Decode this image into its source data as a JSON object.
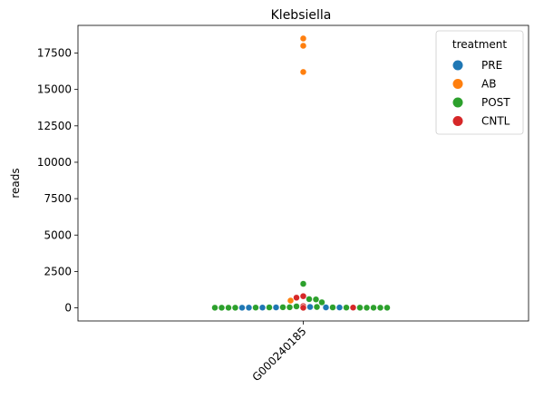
{
  "chart_data": {
    "type": "scatter",
    "subtype": "swarm",
    "title": "Klebsiella",
    "xlabel": "",
    "ylabel": "reads",
    "categories": [
      "G000240185"
    ],
    "ylim": [
      -900,
      19400
    ],
    "yticks": [
      0,
      2500,
      5000,
      7500,
      10000,
      12500,
      15000,
      17500
    ],
    "grid": false,
    "legend": {
      "title": "treatment",
      "placement": "top-right",
      "entries": [
        {
          "name": "PRE",
          "color": "#1f77b4"
        },
        {
          "name": "AB",
          "color": "#ff7f0e"
        },
        {
          "name": "POST",
          "color": "#2ca02c"
        },
        {
          "name": "CNTL",
          "color": "#d62728"
        }
      ]
    },
    "series": [
      {
        "name": "PRE",
        "color": "#1f77b4",
        "values": [
          60,
          30,
          10,
          20,
          25,
          30,
          15
        ]
      },
      {
        "name": "AB",
        "color": "#ff7f0e",
        "values": [
          18500,
          18000,
          16200,
          500
        ]
      },
      {
        "name": "POST",
        "color": "#2ca02c",
        "values": [
          1650,
          600,
          580,
          380,
          100,
          40,
          30,
          20,
          10,
          10,
          10,
          10,
          10,
          10,
          10,
          10,
          10,
          10,
          10,
          10,
          10,
          10,
          10,
          10,
          10,
          10,
          10,
          10,
          10,
          10,
          10,
          15,
          20,
          30,
          40,
          60
        ]
      },
      {
        "name": "CNTL",
        "color": "#d62728",
        "values": [
          800,
          700,
          20,
          10,
          10,
          120
        ]
      }
    ]
  }
}
